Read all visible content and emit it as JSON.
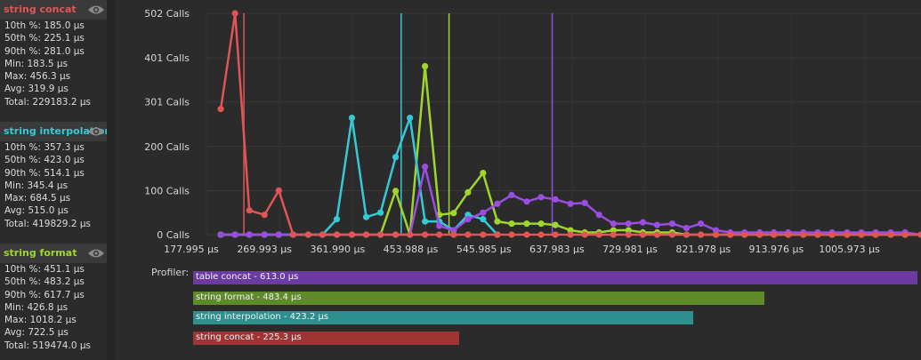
{
  "sidebar": {
    "panels": [
      {
        "title": "string concat",
        "color": "#e05555",
        "stats": [
          "10th %: 185.0 µs",
          "50th %: 225.1 µs",
          "90th %: 281.0 µs",
          "Min: 183.5 µs",
          "Max: 456.3 µs",
          "Avg: 319.9 µs",
          "Total: 229183.2 µs"
        ]
      },
      {
        "title": "string interpolation",
        "color": "#35c9d6",
        "stats": [
          "10th %: 357.3 µs",
          "50th %: 423.0 µs",
          "90th %: 514.1 µs",
          "Min: 345.4 µs",
          "Max: 684.5 µs",
          "Avg: 515.0 µs",
          "Total: 419829.2 µs"
        ]
      },
      {
        "title": "string format",
        "color": "#9fd62e",
        "stats": [
          "10th %: 451.1 µs",
          "50th %: 483.2 µs",
          "90th %: 617.7 µs",
          "Min: 426.8 µs",
          "Max: 1018.2 µs",
          "Avg: 722.5 µs",
          "Total: 519474.0 µs"
        ]
      }
    ]
  },
  "profiler": {
    "label": "Profiler:",
    "bars": [
      {
        "label": "table concat - 613.0 µs",
        "value": 613.0,
        "color": "#6c3aa0"
      },
      {
        "label": "string format - 483.4 µs",
        "value": 483.4,
        "color": "#5f8a2a"
      },
      {
        "label": "string interpolation - 423.2 µs",
        "value": 423.2,
        "color": "#2f8f8f"
      },
      {
        "label": "string concat - 225.3 µs",
        "value": 225.3,
        "color": "#9e3535"
      }
    ]
  },
  "chart_data": {
    "type": "line",
    "title": "",
    "xlabel": "",
    "ylabel": "",
    "xlim": [
      177.995,
      1077
    ],
    "ylim": [
      0,
      502
    ],
    "y_ticks": [
      {
        "value": 0,
        "label": "0 Calls"
      },
      {
        "value": 100,
        "label": "100 Calls"
      },
      {
        "value": 200,
        "label": "200 Calls"
      },
      {
        "value": 301,
        "label": "301 Calls"
      },
      {
        "value": 401,
        "label": "401 Calls"
      },
      {
        "value": 502,
        "label": "502 Calls"
      }
    ],
    "x_ticks": [
      {
        "value": 177.995,
        "label": "177.995 µs"
      },
      {
        "value": 269.993,
        "label": "269.993 µs"
      },
      {
        "value": 361.99,
        "label": "361.990 µs"
      },
      {
        "value": 453.988,
        "label": "453.988 µs"
      },
      {
        "value": 545.985,
        "label": "545.985 µs"
      },
      {
        "value": 637.983,
        "label": "637.983 µs"
      },
      {
        "value": 729.981,
        "label": "729.981 µs"
      },
      {
        "value": 821.978,
        "label": "821.978 µs"
      },
      {
        "value": 913.976,
        "label": "913.976 µs"
      },
      {
        "value": 1005.973,
        "label": "1005.973 µs"
      }
    ],
    "grid": true,
    "series": [
      {
        "name": "string format",
        "color": "#9fd62e",
        "median": 483.2,
        "x": [
          196,
          214,
          232,
          251,
          269,
          287,
          306,
          324,
          342,
          361,
          379,
          397,
          416,
          434,
          453,
          471,
          489,
          507,
          526,
          544,
          562,
          581,
          599,
          617,
          636,
          654,
          672,
          690,
          709,
          727,
          745,
          764,
          782,
          800,
          819,
          837,
          855,
          874,
          892,
          910,
          929,
          947,
          965,
          984,
          1002,
          1020,
          1039,
          1057,
          1077
        ],
        "y": [
          0,
          0,
          0,
          0,
          0,
          0,
          0,
          0,
          0,
          0,
          0,
          0,
          99,
          0,
          382,
          45,
          49,
          96,
          140,
          30,
          25,
          25,
          25,
          22,
          10,
          5,
          5,
          10,
          10,
          5,
          5,
          5,
          0,
          0,
          0,
          0,
          0,
          0,
          0,
          0,
          0,
          0,
          0,
          0,
          0,
          0,
          0,
          0,
          0
        ]
      },
      {
        "name": "string interpolation",
        "color": "#35c9d6",
        "median": 423.0,
        "x": [
          196,
          214,
          232,
          251,
          269,
          287,
          306,
          324,
          342,
          361,
          379,
          397,
          416,
          434,
          453,
          471,
          489,
          507,
          526,
          544
        ],
        "y": [
          0,
          0,
          0,
          0,
          0,
          0,
          0,
          0,
          35,
          265,
          40,
          50,
          176,
          265,
          30,
          30,
          10,
          45,
          35,
          0
        ]
      },
      {
        "name": "table concat",
        "color": "#9a4de0",
        "median": 613.0,
        "x": [
          196,
          214,
          232,
          251,
          269,
          287,
          306,
          324,
          342,
          361,
          379,
          397,
          416,
          434,
          453,
          471,
          489,
          507,
          526,
          544,
          562,
          581,
          599,
          617,
          636,
          654,
          672,
          690,
          709,
          727,
          745,
          764,
          782,
          800,
          819,
          837,
          855,
          874,
          892,
          910,
          929,
          947,
          965,
          984,
          1002,
          1020,
          1039,
          1057,
          1077
        ],
        "y": [
          0,
          0,
          0,
          0,
          0,
          0,
          0,
          0,
          0,
          0,
          0,
          0,
          0,
          0,
          154,
          20,
          10,
          35,
          50,
          70,
          90,
          75,
          85,
          80,
          70,
          72,
          45,
          25,
          25,
          28,
          22,
          25,
          15,
          25,
          10,
          5,
          5,
          5,
          5,
          5,
          5,
          5,
          5,
          5,
          5,
          5,
          5,
          5,
          0
        ]
      },
      {
        "name": "string concat",
        "color": "#e05555",
        "median": 225.1,
        "x": [
          196,
          214,
          232,
          251,
          269,
          287,
          306,
          324,
          342,
          361,
          379,
          397,
          416,
          434,
          453,
          471,
          489,
          507,
          526,
          544,
          562,
          581,
          599,
          617,
          636,
          654,
          672,
          690,
          709,
          727,
          745,
          764,
          782,
          800,
          819,
          837,
          855,
          874,
          892,
          910,
          929,
          947,
          965,
          984,
          1002,
          1020,
          1039,
          1057,
          1077
        ],
        "y": [
          285,
          502,
          55,
          45,
          100,
          0,
          0,
          0,
          0,
          0,
          0,
          0,
          0,
          0,
          0,
          0,
          0,
          0,
          0,
          0,
          0,
          0,
          0,
          0,
          0,
          0,
          0,
          0,
          0,
          0,
          0,
          0,
          0,
          0,
          0,
          0,
          0,
          0,
          0,
          0,
          0,
          0,
          0,
          0,
          0,
          0,
          0,
          0,
          0
        ]
      }
    ]
  }
}
